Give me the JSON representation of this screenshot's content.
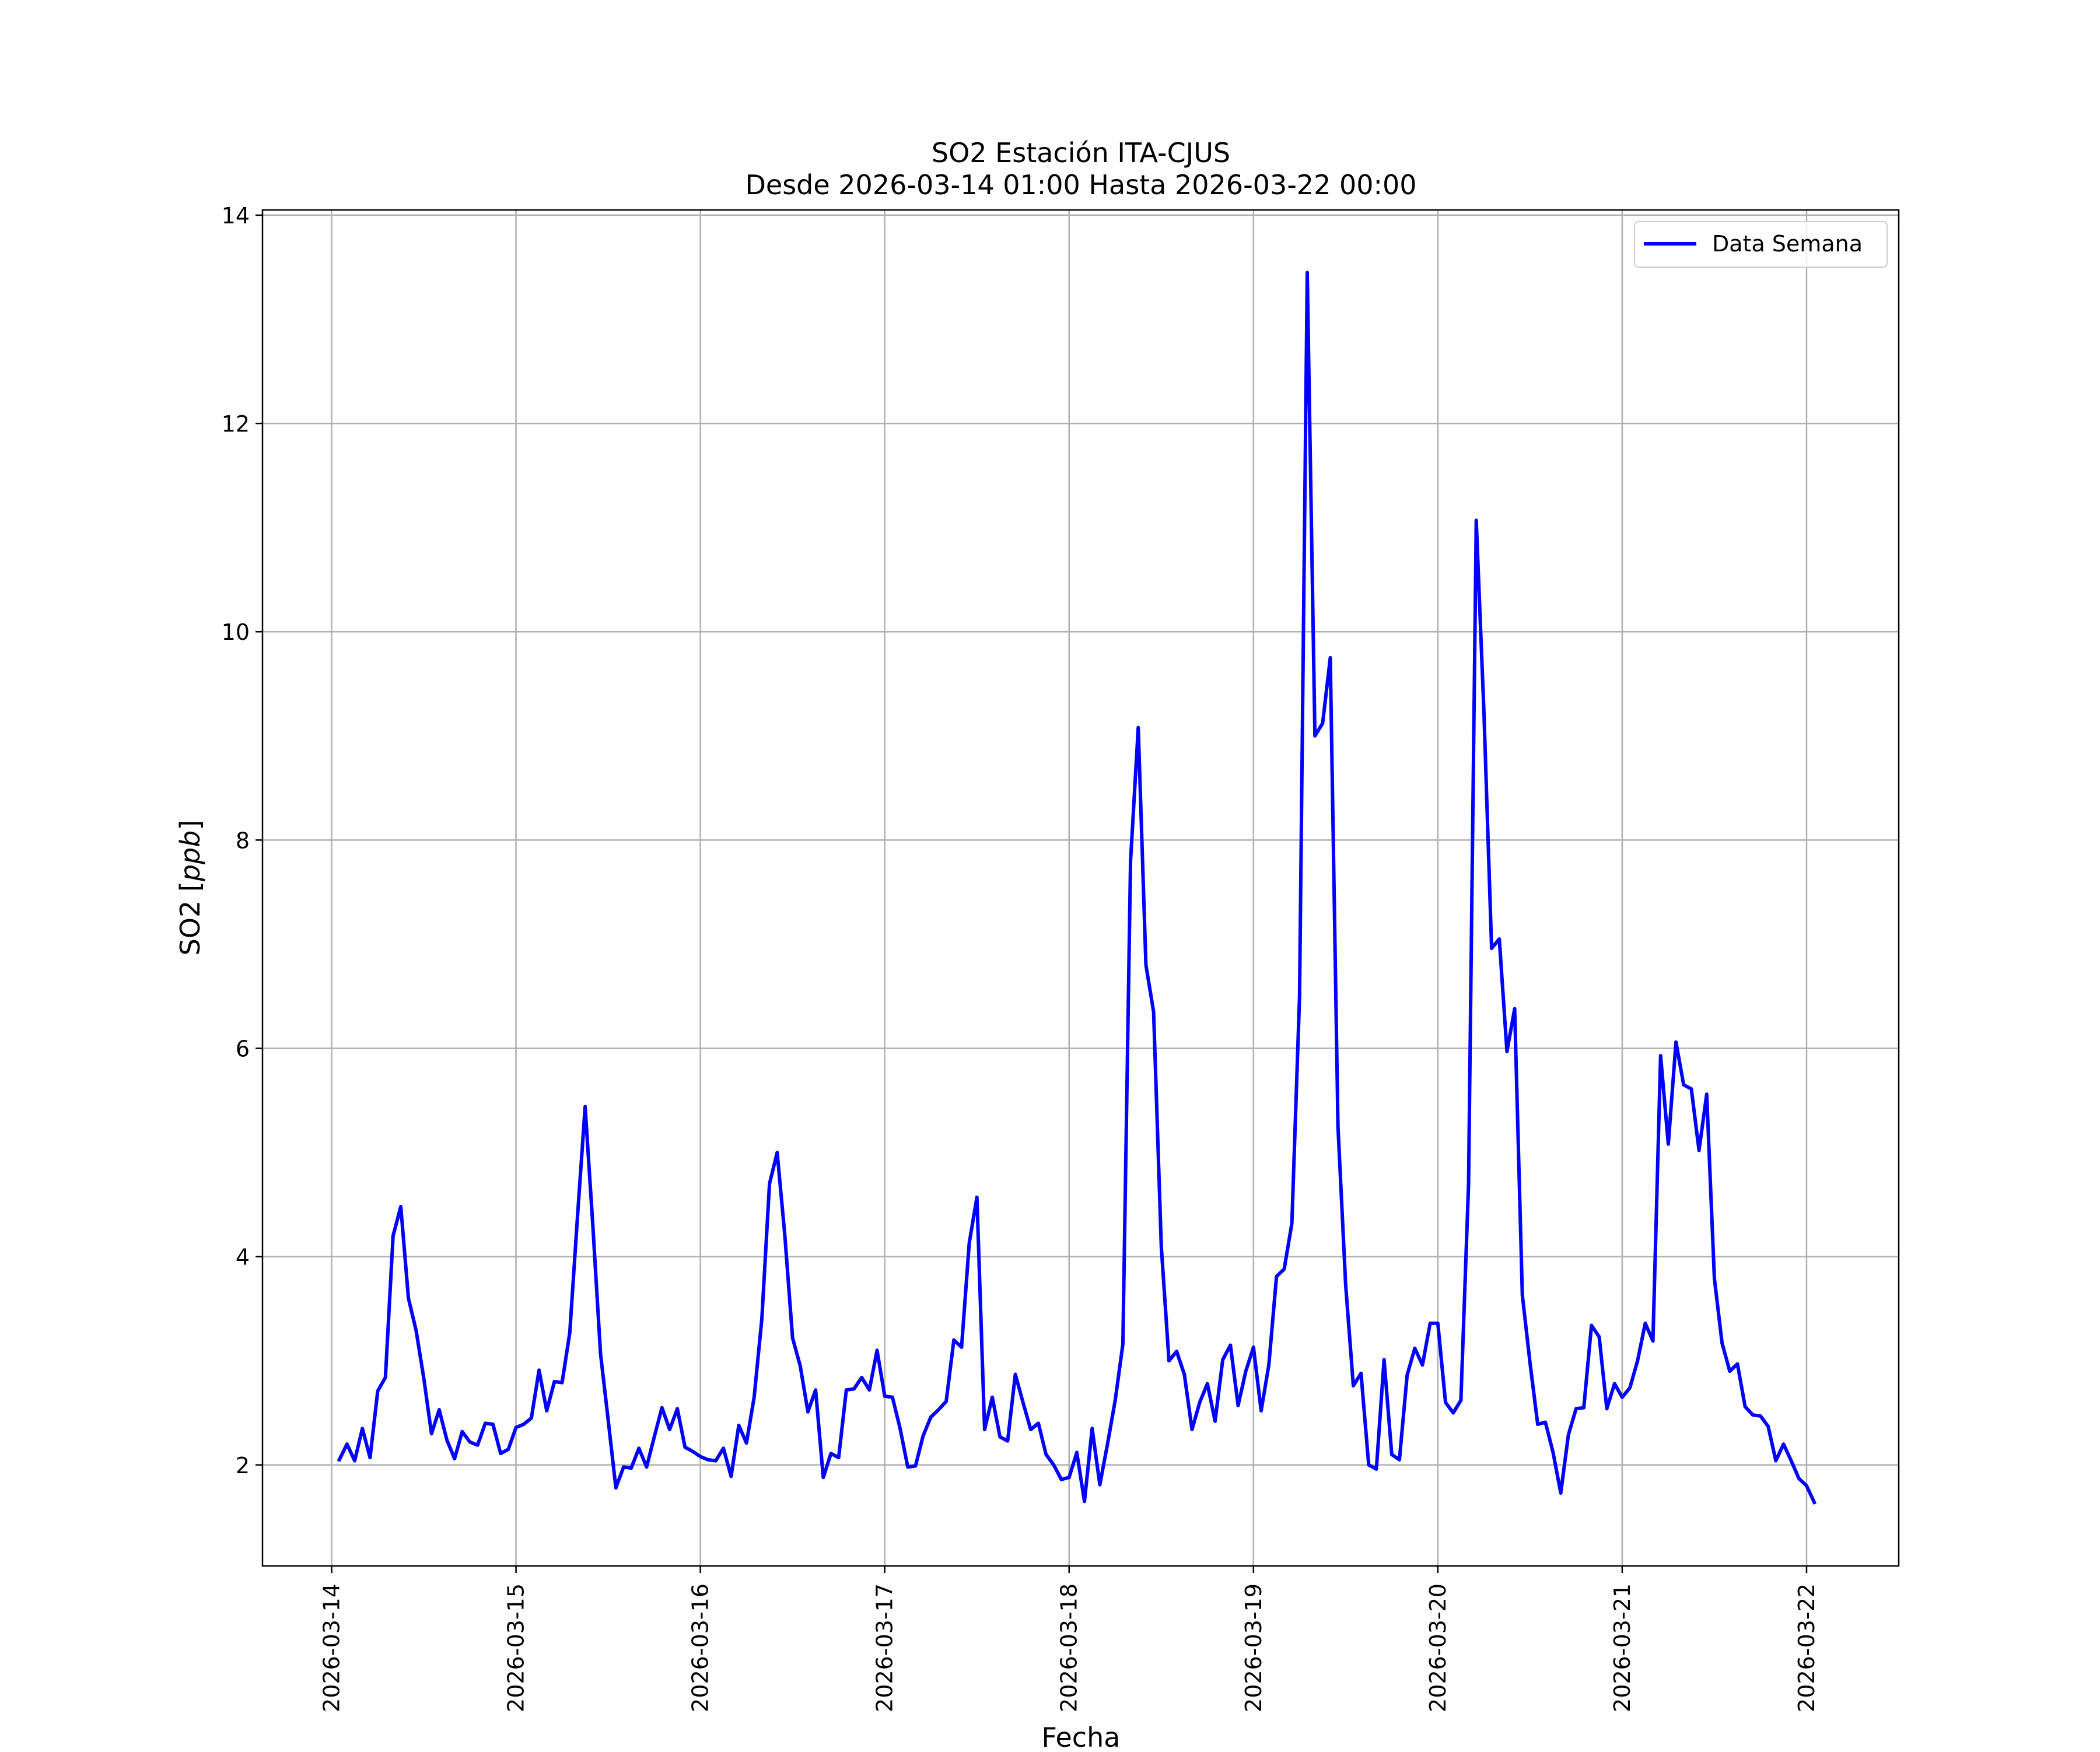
{
  "chart_data": {
    "type": "line",
    "title": "SO2 Estación ITA-CJUS",
    "subtitle": "Desde 2026-03-14 01:00 Hasta 2026-03-22 00:00",
    "xlabel": "Fecha",
    "ylabel": "SO2 [ppb]",
    "ylabel_unit": "ppb",
    "ylabel_prefix": "SO2 [",
    "ylabel_suffix": "]",
    "xlim": [
      "2026-03-13 15:00",
      "2026-03-22 12:00"
    ],
    "ylim": [
      1.03,
      14.05
    ],
    "yticks": [
      2,
      4,
      6,
      8,
      10,
      12,
      14
    ],
    "xticks": [
      "2026-03-14",
      "2026-03-15",
      "2026-03-16",
      "2026-03-17",
      "2026-03-18",
      "2026-03-19",
      "2026-03-20",
      "2026-03-21",
      "2026-03-22"
    ],
    "grid": true,
    "legend_position": "top-right",
    "color": "#0000ff",
    "series": [
      {
        "name": "Data Semana",
        "x_start": "2026-03-14 01:00",
        "x_step_hours": 1,
        "x_end": "2026-03-22 00:00",
        "values": [
          2.05,
          2.2,
          2.04,
          2.35,
          2.07,
          2.71,
          2.84,
          4.2,
          4.48,
          3.6,
          3.29,
          2.83,
          2.3,
          2.53,
          2.24,
          2.06,
          2.32,
          2.22,
          2.19,
          2.4,
          2.39,
          2.11,
          2.15,
          2.36,
          2.39,
          2.45,
          2.91,
          2.52,
          2.8,
          2.79,
          3.27,
          4.38,
          5.44,
          4.3,
          3.07,
          2.43,
          1.78,
          1.98,
          1.97,
          2.16,
          1.98,
          2.27,
          2.55,
          2.34,
          2.54,
          2.17,
          2.13,
          2.08,
          2.05,
          2.04,
          2.16,
          1.89,
          2.38,
          2.21,
          2.65,
          3.4,
          4.7,
          5.0,
          4.2,
          3.22,
          2.95,
          2.51,
          2.72,
          1.88,
          2.11,
          2.07,
          2.72,
          2.73,
          2.84,
          2.72,
          3.1,
          2.66,
          2.65,
          2.35,
          1.98,
          1.99,
          2.28,
          2.46,
          2.53,
          2.61,
          3.2,
          3.13,
          4.13,
          4.57,
          2.34,
          2.65,
          2.27,
          2.23,
          2.87,
          2.6,
          2.34,
          2.4,
          2.1,
          2.0,
          1.86,
          1.88,
          2.12,
          1.65,
          2.35,
          1.81,
          2.2,
          2.62,
          3.16,
          7.8,
          9.08,
          6.8,
          6.35,
          4.1,
          3.0,
          3.09,
          2.87,
          2.34,
          2.6,
          2.78,
          2.42,
          3.01,
          3.15,
          2.57,
          2.9,
          3.13,
          2.52,
          2.96,
          3.81,
          3.88,
          4.32,
          6.5,
          13.45,
          9.0,
          9.12,
          9.75,
          5.25,
          3.73,
          2.76,
          2.88,
          2.0,
          1.96,
          3.01,
          2.1,
          2.05,
          2.86,
          3.12,
          2.96,
          3.36,
          3.36,
          2.6,
          2.5,
          2.62,
          4.7,
          11.07,
          9.23,
          6.96,
          7.05,
          5.97,
          6.38,
          3.63,
          2.98,
          2.39,
          2.41,
          2.12,
          1.73,
          2.29,
          2.54,
          2.55,
          3.34,
          3.23,
          2.54,
          2.78,
          2.65,
          2.74,
          3.0,
          3.36,
          3.19,
          5.93,
          5.08,
          6.06,
          5.65,
          5.61,
          5.02,
          5.56,
          3.79,
          3.17,
          2.9,
          2.97,
          2.56,
          2.48,
          2.47,
          2.37,
          2.04,
          2.2,
          2.04,
          1.87,
          1.8,
          1.64
        ]
      }
    ]
  }
}
